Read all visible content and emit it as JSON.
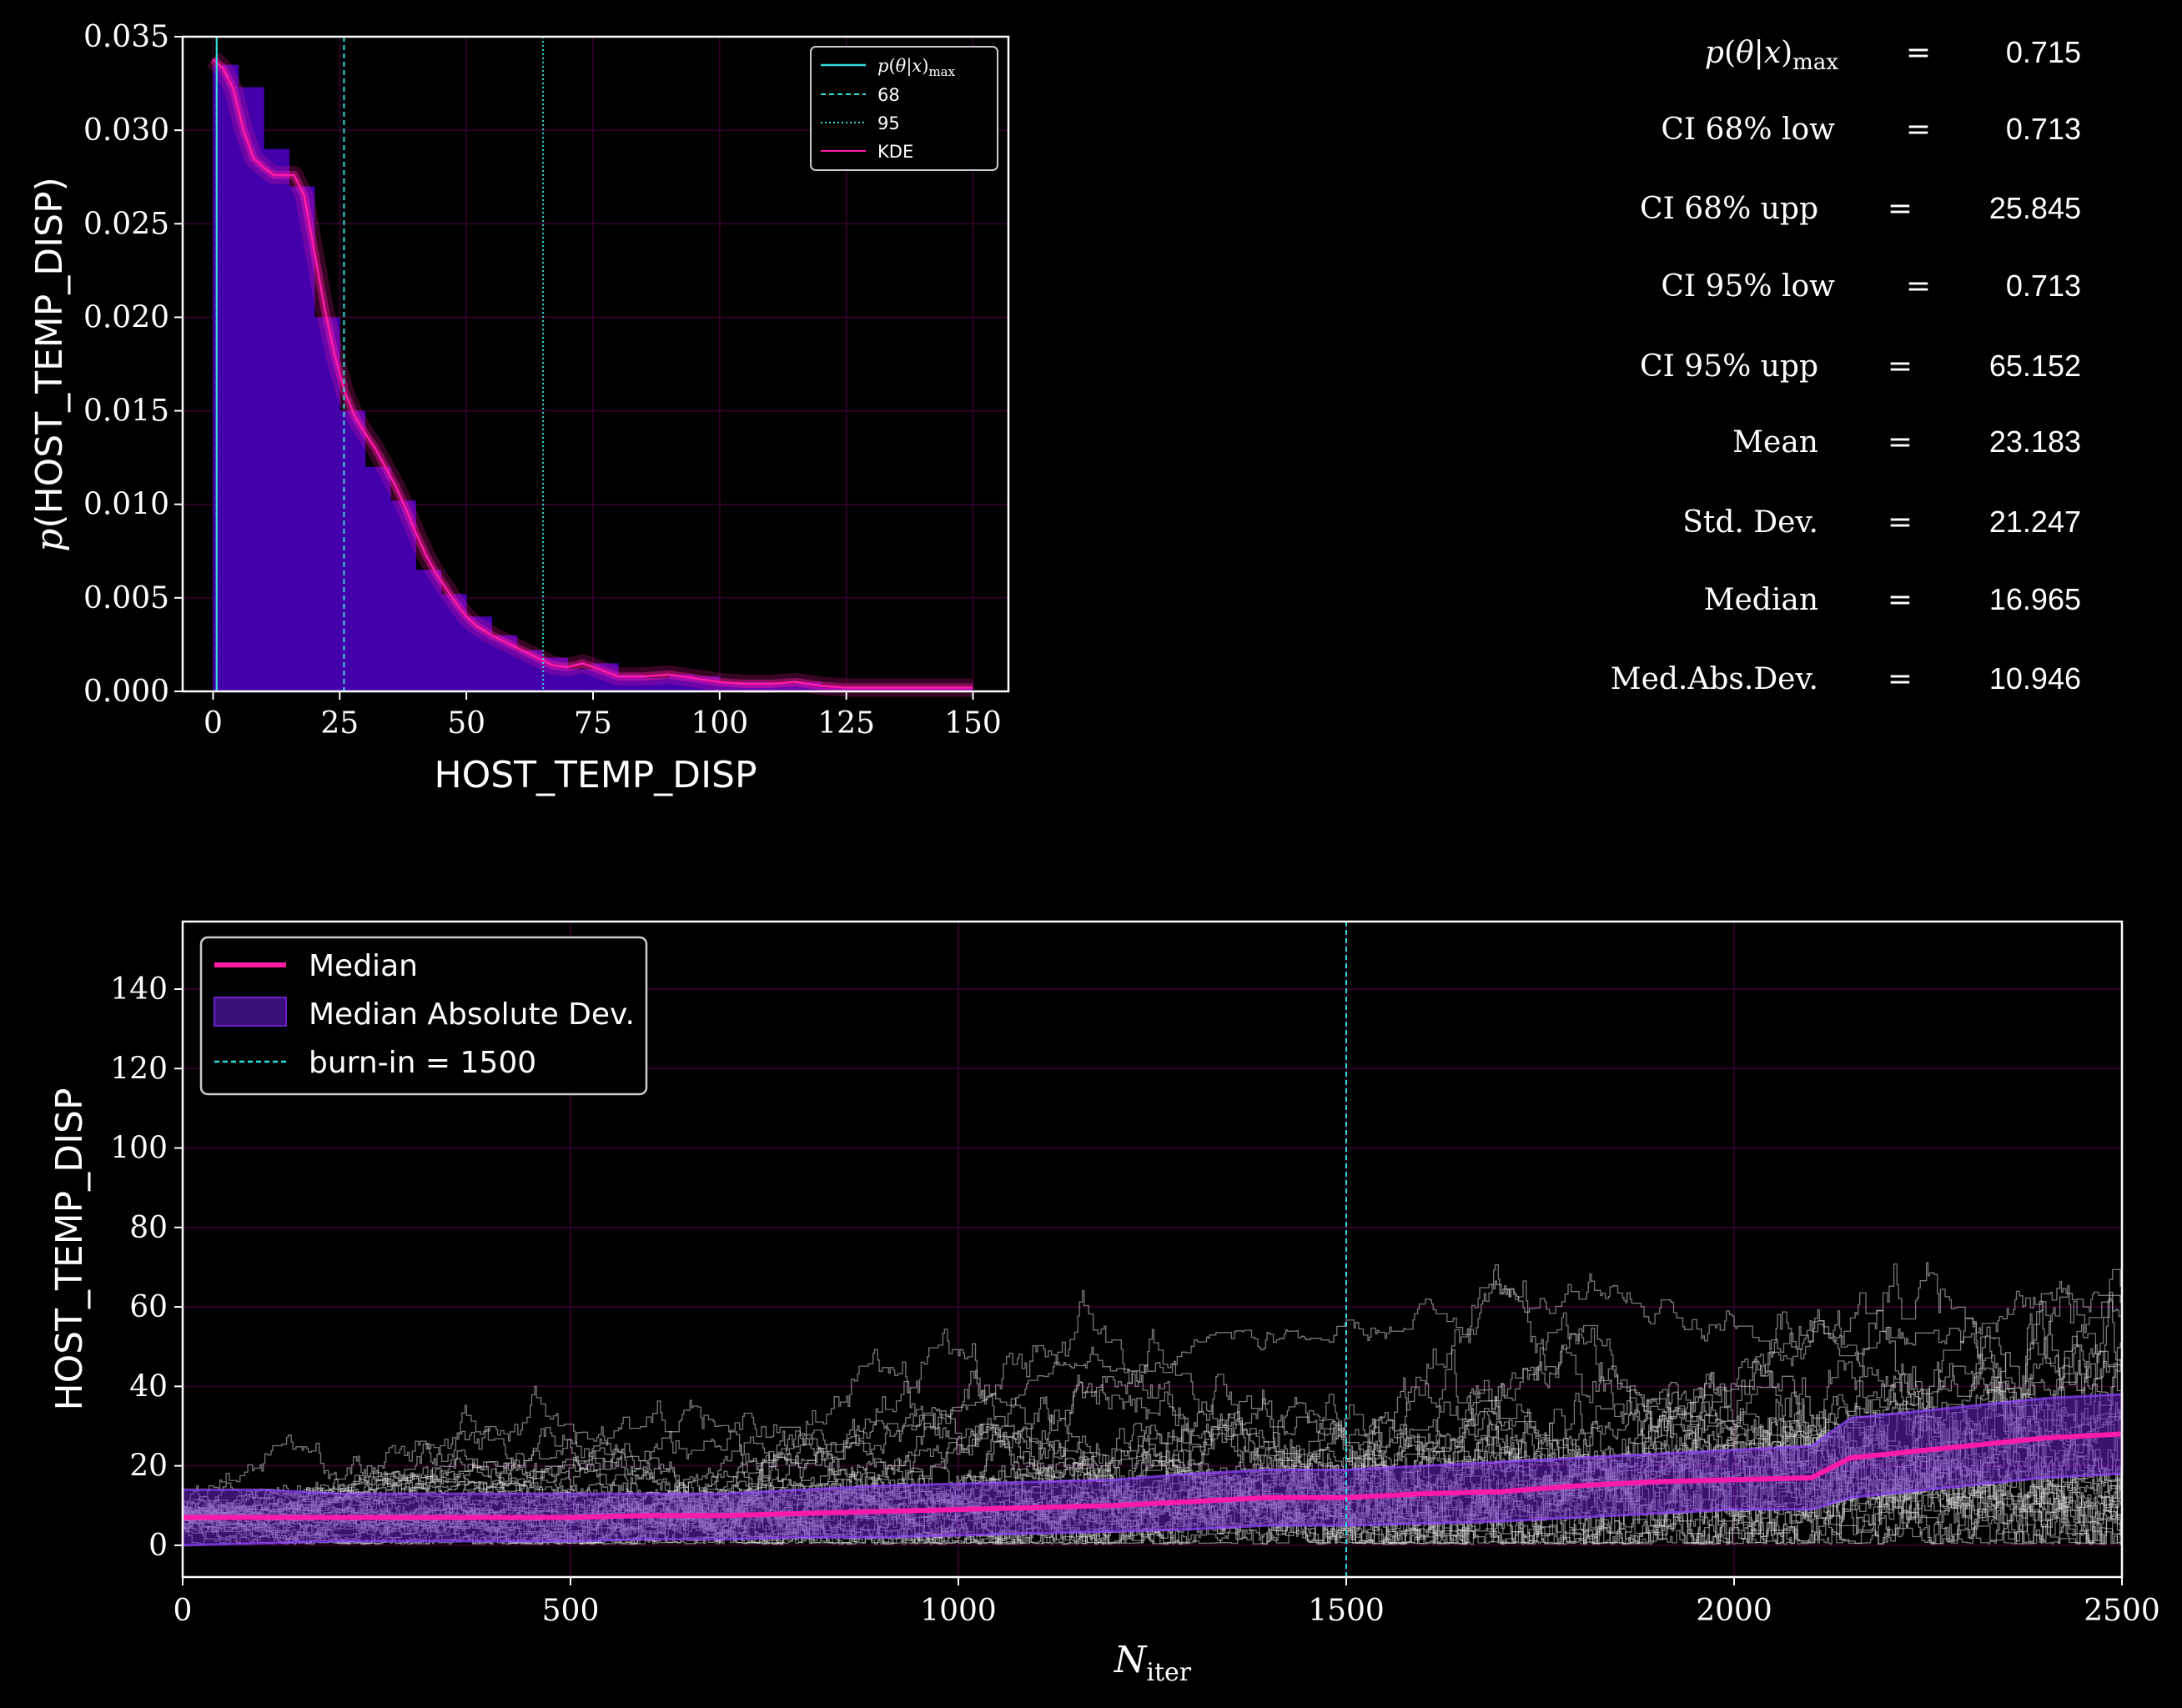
{
  "chart_data": [
    {
      "type": "histogram",
      "xlabel": "HOST_TEMP_DISP",
      "ylabel": "p(HOST_TEMP_DISP)",
      "xlim": [
        -6,
        157
      ],
      "ylim": [
        0,
        0.035
      ],
      "xticks": [
        0,
        25,
        50,
        75,
        100,
        125,
        150
      ],
      "yticks": [
        0.0,
        0.005,
        0.01,
        0.015,
        0.02,
        0.025,
        0.03,
        0.035
      ],
      "ytick_labels": [
        "0.000",
        "0.005",
        "0.010",
        "0.015",
        "0.020",
        "0.025",
        "0.030",
        "0.035"
      ],
      "bin_width": 5,
      "bins_x": [
        0,
        5,
        10,
        15,
        20,
        25,
        30,
        35,
        40,
        45,
        50,
        55,
        60,
        65,
        70,
        75,
        80,
        85,
        90,
        95,
        100,
        105,
        110,
        115,
        120,
        125,
        130,
        135,
        140,
        145
      ],
      "bins_y": [
        0.0335,
        0.0323,
        0.029,
        0.027,
        0.02,
        0.015,
        0.012,
        0.0102,
        0.0065,
        0.0052,
        0.004,
        0.003,
        0.0022,
        0.0018,
        0.0012,
        0.0015,
        0.0009,
        0.0007,
        0.0009,
        0.0008,
        0.0005,
        0.0005,
        0.0004,
        0.0005,
        0.0002,
        0.0002,
        0.0002,
        0.0002,
        0.0002,
        0.0002
      ],
      "kde_x": [
        0,
        2,
        4,
        6,
        8,
        10,
        12,
        14,
        16,
        18,
        20,
        22,
        24,
        26,
        28,
        30,
        32,
        34,
        36,
        38,
        40,
        42,
        44,
        46,
        48,
        50,
        52,
        55,
        58,
        61,
        64,
        67,
        70,
        73,
        76,
        80,
        85,
        90,
        95,
        100,
        105,
        110,
        115,
        120,
        125,
        130,
        140,
        150
      ],
      "kde_y": [
        0.0338,
        0.0333,
        0.0322,
        0.03,
        0.0285,
        0.028,
        0.0276,
        0.0276,
        0.0276,
        0.0265,
        0.0235,
        0.0205,
        0.018,
        0.016,
        0.0147,
        0.0138,
        0.013,
        0.012,
        0.011,
        0.0098,
        0.0085,
        0.0073,
        0.0063,
        0.0055,
        0.0047,
        0.004,
        0.0035,
        0.003,
        0.0026,
        0.0022,
        0.0018,
        0.0014,
        0.0013,
        0.0015,
        0.0012,
        0.0008,
        0.0008,
        0.0009,
        0.0007,
        0.0005,
        0.0004,
        0.0004,
        0.0005,
        0.0003,
        0.0002,
        0.0002,
        0.0002,
        0.0002
      ],
      "vlines": [
        {
          "name": "p(θ|x)max",
          "x": 0.715,
          "style": "solid"
        },
        {
          "name": "68",
          "x": [
            0.713,
            25.845
          ],
          "style": "dashed"
        },
        {
          "name": "95",
          "x": [
            0.713,
            65.152
          ],
          "style": "dotted"
        }
      ],
      "legend": [
        "p(θ|x)max",
        "68",
        "95",
        "KDE"
      ],
      "legend_position": "top-right",
      "grid": true,
      "colors": {
        "hist": "#4400aa",
        "kde": "#ff1aa8",
        "lines": "#33dddd",
        "grid": "#3a0030"
      }
    },
    {
      "type": "line",
      "xlabel": "N_iter",
      "ylabel": "HOST_TEMP_DISP",
      "xlim": [
        0,
        2500
      ],
      "ylim": [
        -8,
        157
      ],
      "xticks": [
        0,
        500,
        1000,
        1500,
        2000,
        2500
      ],
      "yticks": [
        0,
        20,
        40,
        60,
        80,
        100,
        120,
        140
      ],
      "median_x": [
        0,
        100,
        200,
        300,
        400,
        500,
        600,
        700,
        800,
        900,
        1000,
        1100,
        1200,
        1300,
        1400,
        1500,
        1600,
        1700,
        1800,
        1900,
        2000,
        2100,
        2150,
        2200,
        2300,
        2400,
        2500
      ],
      "median_y": [
        7,
        7,
        7,
        7,
        7,
        7,
        7.5,
        7.5,
        8,
        8.5,
        9,
        9.5,
        10,
        11,
        12,
        12,
        13,
        13.5,
        15,
        16,
        16.5,
        17,
        22,
        23,
        25,
        27,
        28
      ],
      "mad_upper": [
        14,
        14,
        13,
        13,
        13,
        13,
        13,
        13,
        14,
        15,
        15.5,
        16,
        16.5,
        18,
        19,
        19,
        20,
        21,
        22,
        23,
        24,
        25,
        32,
        33,
        35,
        37,
        38
      ],
      "mad_lower": [
        0,
        0.5,
        1,
        1,
        1,
        1,
        1.5,
        1.5,
        2,
        2,
        2.5,
        3,
        3.5,
        4,
        5,
        5,
        5.5,
        6,
        7,
        8,
        9,
        9,
        12,
        13,
        15,
        17,
        18
      ],
      "walkers": 32,
      "burn_in": 1500,
      "legend": [
        "Median",
        "Median Absolute Dev.",
        "burn-in = 1500"
      ],
      "legend_position": "top-left",
      "grid": true,
      "colors": {
        "median": "#ff1aa8",
        "mad": "#6a22c8",
        "walker": "#d8d8d8",
        "burnin": "#33dddd",
        "grid": "#3a0030"
      }
    }
  ],
  "stats": [
    {
      "label": "p(θ|x)max",
      "eq": "=",
      "value": "0.715"
    },
    {
      "label": "CI 68% low",
      "eq": "=",
      "value": "0.713"
    },
    {
      "label": "CI 68% upp",
      "eq": "=",
      "value": "25.845"
    },
    {
      "label": "CI 95% low",
      "eq": "=",
      "value": "0.713"
    },
    {
      "label": "CI 95% upp",
      "eq": "=",
      "value": "65.152"
    },
    {
      "label": "Mean",
      "eq": "=",
      "value": "23.183"
    },
    {
      "label": "Std. Dev.",
      "eq": "=",
      "value": "21.247"
    },
    {
      "label": "Median",
      "eq": "=",
      "value": "16.965"
    },
    {
      "label": "Med.Abs.Dev.",
      "eq": "=",
      "value": "10.946"
    }
  ]
}
